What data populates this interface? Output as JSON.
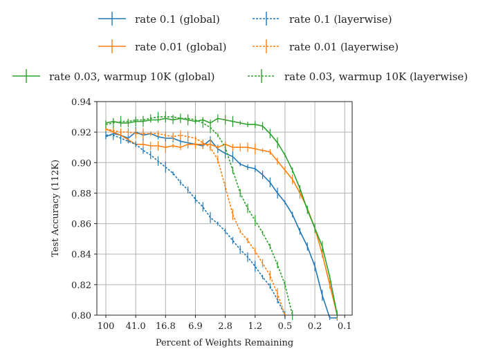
{
  "chart_data": {
    "type": "line",
    "xlabel": "Percent of Weights Remaining",
    "ylabel": "Test Accuracy (112K)",
    "x_tick_labels": [
      "100",
      "41.0",
      "16.8",
      "6.9",
      "2.8",
      "1.2",
      "0.5",
      "0.2",
      "0.1"
    ],
    "y_ticks": [
      "0.80",
      "0.82",
      "0.84",
      "0.86",
      "0.88",
      "0.90",
      "0.92",
      "0.94"
    ],
    "ylim": [
      0.8,
      0.94
    ],
    "x_scale": "log (pruning iterations)",
    "grid": true,
    "legend_position": "top (outside plot)",
    "x_percent": [
      100,
      80,
      64,
      51.2,
      41,
      32.8,
      26.2,
      21,
      16.8,
      13.4,
      10.7,
      8.6,
      6.9,
      5.5,
      4.4,
      3.5,
      2.8,
      2.3,
      1.8,
      1.4,
      1.2,
      0.9,
      0.7,
      0.6,
      0.5,
      0.4,
      0.3,
      0.2,
      0.2,
      0.1,
      0.1,
      0.1
    ],
    "series": [
      {
        "name": "rate 0.1 (global)",
        "color": "#1f77b4",
        "dash": "solid",
        "values": [
          0.917,
          0.919,
          0.918,
          0.916,
          0.92,
          0.918,
          0.919,
          0.917,
          0.916,
          0.916,
          0.914,
          0.913,
          0.912,
          0.911,
          0.915,
          0.909,
          0.906,
          0.904,
          0.899,
          0.897,
          0.896,
          0.892,
          0.887,
          0.88,
          0.874,
          0.866,
          0.855,
          0.845,
          0.832,
          0.813,
          0.795,
          0.78
        ]
      },
      {
        "name": "rate 0.01 (global)",
        "color": "#ff7f0e",
        "dash": "solid",
        "values": [
          0.922,
          0.92,
          0.918,
          0.915,
          0.912,
          0.912,
          0.911,
          0.911,
          0.91,
          0.911,
          0.91,
          0.912,
          0.912,
          0.912,
          0.912,
          0.91,
          0.912,
          0.91,
          0.91,
          0.91,
          0.909,
          0.908,
          0.907,
          0.901,
          0.895,
          0.889,
          0.88,
          0.87,
          0.857,
          0.84,
          0.82,
          0.8
        ]
      },
      {
        "name": "rate 0.03, warmup 10K (global)",
        "color": "#2ca02c",
        "dash": "solid",
        "values": [
          0.926,
          0.927,
          0.926,
          0.926,
          0.927,
          0.927,
          0.928,
          0.928,
          0.929,
          0.928,
          0.929,
          0.928,
          0.927,
          0.928,
          0.926,
          0.929,
          0.928,
          0.927,
          0.926,
          0.925,
          0.925,
          0.924,
          0.919,
          0.913,
          0.905,
          0.895,
          0.883,
          0.869,
          0.857,
          0.845,
          0.825,
          0.8
        ]
      },
      {
        "name": "rate 0.1 (layerwise)",
        "color": "#1f77b4",
        "dash": "dashed",
        "values": [
          0.918,
          0.918,
          0.916,
          0.914,
          0.912,
          0.908,
          0.905,
          0.901,
          0.897,
          0.893,
          0.887,
          0.882,
          0.876,
          0.871,
          0.864,
          0.86,
          0.855,
          0.849,
          0.843,
          0.838,
          0.832,
          0.825,
          0.819,
          0.81,
          0.8
        ]
      },
      {
        "name": "rate 0.01 (layerwise)",
        "color": "#ff7f0e",
        "dash": "dashed",
        "values": [
          0.922,
          0.921,
          0.92,
          0.92,
          0.919,
          0.919,
          0.919,
          0.919,
          0.918,
          0.917,
          0.918,
          0.917,
          0.916,
          0.913,
          0.91,
          0.902,
          0.884,
          0.866,
          0.855,
          0.849,
          0.842,
          0.834,
          0.826,
          0.814,
          0.8
        ]
      },
      {
        "name": "rate 0.03, warmup 10K (layerwise)",
        "color": "#2ca02c",
        "dash": "dashed",
        "values": [
          0.925,
          0.926,
          0.927,
          0.927,
          0.928,
          0.928,
          0.929,
          0.93,
          0.93,
          0.93,
          0.929,
          0.929,
          0.928,
          0.926,
          0.923,
          0.918,
          0.91,
          0.895,
          0.88,
          0.87,
          0.862,
          0.854,
          0.845,
          0.833,
          0.82,
          0.8
        ]
      }
    ]
  }
}
